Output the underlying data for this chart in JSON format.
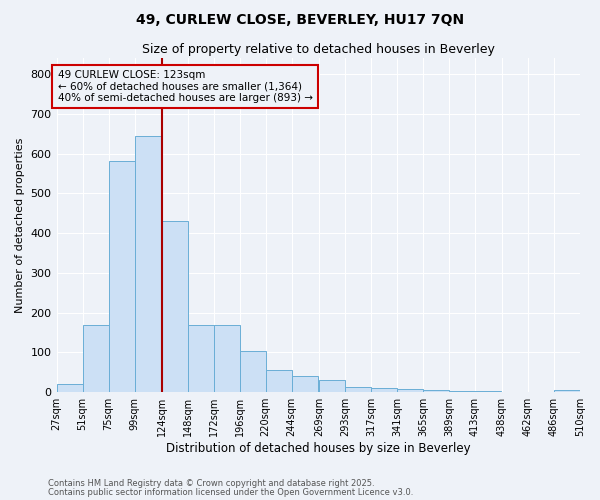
{
  "title1": "49, CURLEW CLOSE, BEVERLEY, HU17 7QN",
  "title2": "Size of property relative to detached houses in Beverley",
  "xlabel": "Distribution of detached houses by size in Beverley",
  "ylabel": "Number of detached properties",
  "bins": [
    "27sqm",
    "51sqm",
    "75sqm",
    "99sqm",
    "124sqm",
    "148sqm",
    "172sqm",
    "196sqm",
    "220sqm",
    "244sqm",
    "269sqm",
    "293sqm",
    "317sqm",
    "341sqm",
    "365sqm",
    "389sqm",
    "413sqm",
    "438sqm",
    "462sqm",
    "486sqm",
    "510sqm"
  ],
  "bin_edges": [
    27,
    51,
    75,
    99,
    124,
    148,
    172,
    196,
    220,
    244,
    269,
    293,
    317,
    341,
    365,
    389,
    413,
    438,
    462,
    486,
    510
  ],
  "heights": [
    20,
    170,
    580,
    645,
    430,
    170,
    170,
    103,
    57,
    42,
    30,
    13,
    10,
    7,
    5,
    3,
    2,
    1,
    1,
    5
  ],
  "bar_facecolor": "#cce0f5",
  "bar_edgecolor": "#6aaed6",
  "property_line_x": 124,
  "property_line_color": "#aa0000",
  "annotation_line1": "49 CURLEW CLOSE: 123sqm",
  "annotation_line2": "← 60% of detached houses are smaller (1,364)",
  "annotation_line3": "40% of semi-detached houses are larger (893) →",
  "annotation_box_color": "#cc0000",
  "ylim": [
    0,
    840
  ],
  "yticks": [
    0,
    100,
    200,
    300,
    400,
    500,
    600,
    700,
    800
  ],
  "footer1": "Contains HM Land Registry data © Crown copyright and database right 2025.",
  "footer2": "Contains public sector information licensed under the Open Government Licence v3.0.",
  "background_color": "#eef2f8",
  "grid_color": "#ffffff"
}
